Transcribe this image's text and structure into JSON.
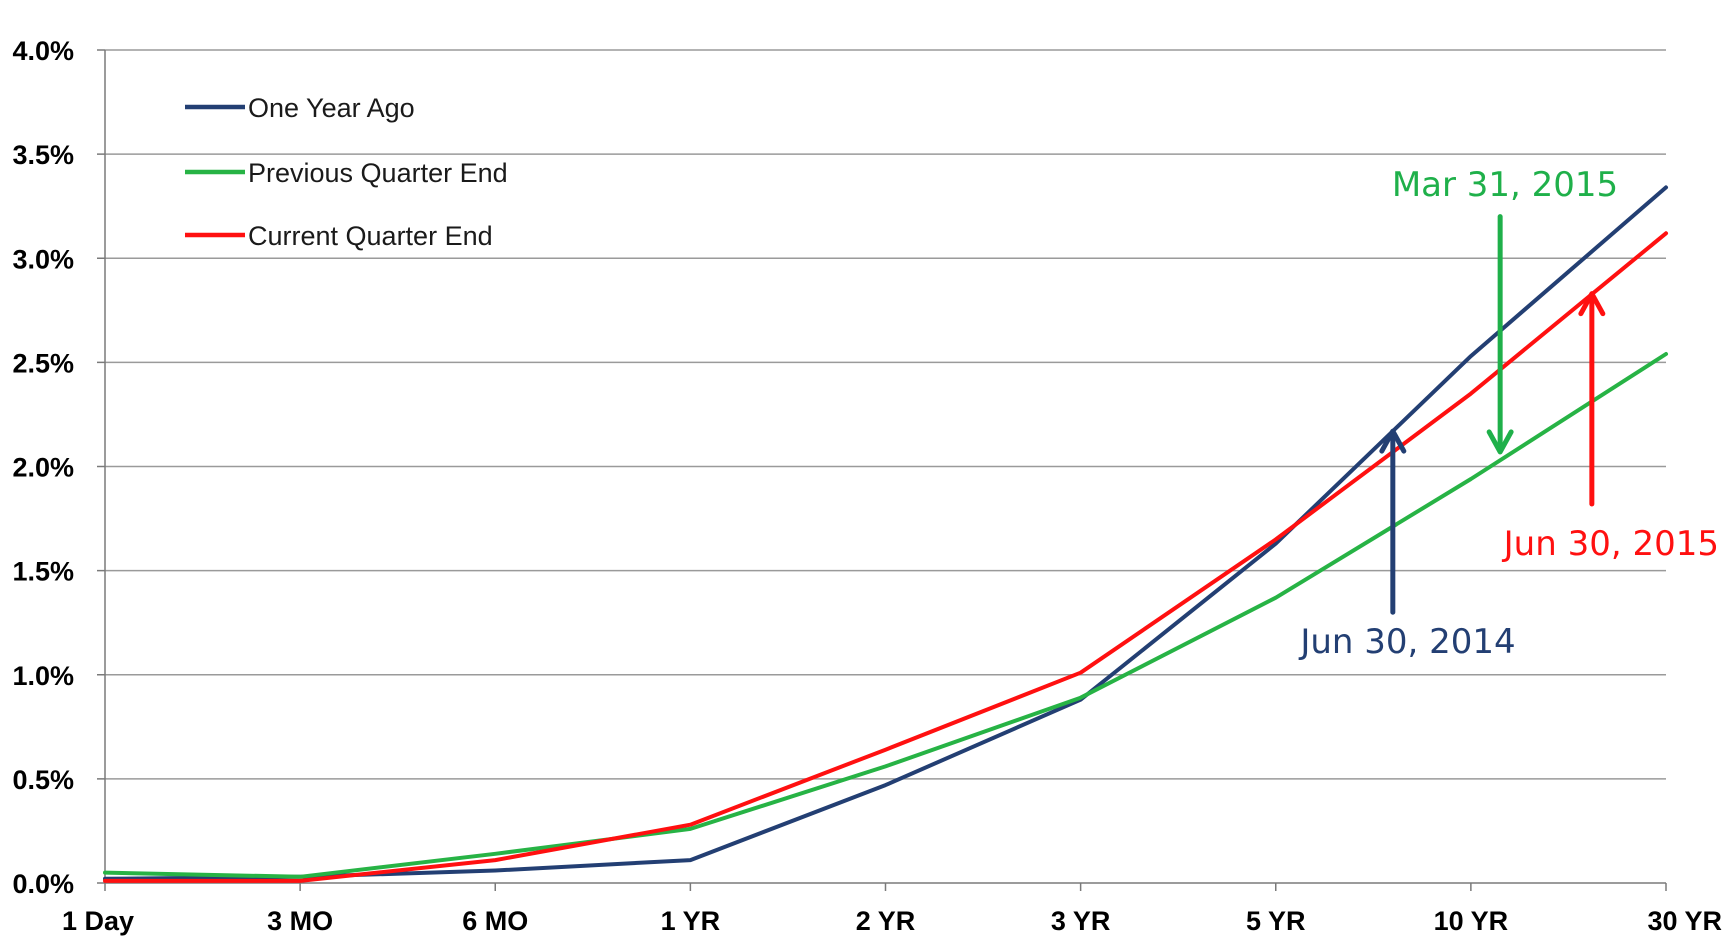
{
  "chart_data": {
    "type": "line",
    "categories": [
      "1 Day",
      "3 MO",
      "6 MO",
      "1 YR",
      "2 YR",
      "3 YR",
      "5 YR",
      "10 YR",
      "30 YR"
    ],
    "y_ticks": [
      "0.0%",
      "0.5%",
      "1.0%",
      "1.5%",
      "2.0%",
      "2.5%",
      "3.0%",
      "3.5%",
      "4.0%"
    ],
    "ylim": [
      0,
      4
    ],
    "grid": true,
    "legend_position": "top-left",
    "series": [
      {
        "name": "One Year Ago",
        "color": "#233f73",
        "values": [
          0.02,
          0.03,
          0.06,
          0.11,
          0.47,
          0.88,
          1.63,
          2.53,
          3.34
        ]
      },
      {
        "name": "Previous Quarter End",
        "color": "#27b345",
        "values": [
          0.05,
          0.03,
          0.14,
          0.26,
          0.56,
          0.89,
          1.37,
          1.94,
          2.54
        ]
      },
      {
        "name": "Current Quarter End",
        "color": "#ff1010",
        "values": [
          0.01,
          0.01,
          0.11,
          0.28,
          0.64,
          1.01,
          1.65,
          2.35,
          3.12
        ]
      }
    ],
    "annotations": [
      {
        "text": "Mar 31, 2015",
        "color": "#1fb04a",
        "series": "Previous Quarter End",
        "arrow": "down",
        "x_pos": 7.15,
        "tail_y": 3.2,
        "head_y": 2.07
      },
      {
        "text": "Jun 30, 2015",
        "color": "#ff1010",
        "series": "Current Quarter End",
        "arrow": "up",
        "x_pos": 7.62,
        "tail_y": 1.82,
        "head_y": 2.83
      },
      {
        "text": "Jun 30, 2014",
        "color": "#233f73",
        "series": "One Year Ago",
        "arrow": "up",
        "x_pos": 6.6,
        "tail_y": 1.3,
        "head_y": 2.17
      }
    ]
  }
}
